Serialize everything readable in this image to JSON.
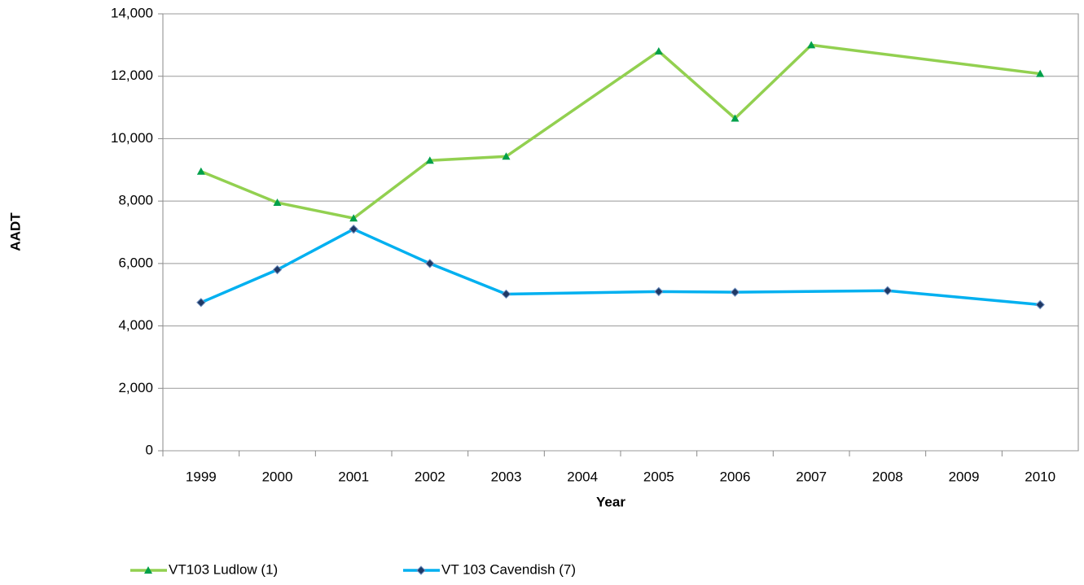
{
  "chart_data": {
    "type": "line",
    "x_label": "Year",
    "y_label": "AADT",
    "xlim": [
      1998.5,
      2010.5
    ],
    "xticks": [
      1999,
      2000,
      2001,
      2002,
      2003,
      2004,
      2005,
      2006,
      2007,
      2008,
      2009,
      2010
    ],
    "ylim": [
      0,
      14000
    ],
    "yticks": [
      0,
      {
        "value": 2000,
        "label": "2,000"
      },
      {
        "value": 4000,
        "label": "4,000"
      },
      {
        "value": 6000,
        "label": "6,000"
      },
      {
        "value": 8000,
        "label": "8,000"
      },
      {
        "value": 10000,
        "label": "10,000"
      },
      {
        "value": 12000,
        "label": "12,000"
      },
      {
        "value": 14000,
        "label": "14,000"
      }
    ],
    "grid": true,
    "legend": "bottom",
    "series": [
      {
        "name": "VT103 Ludlow (1)",
        "color": "#92d050",
        "marker": "triangle",
        "marker_color": "#00a04a",
        "x": [
          1999,
          2000,
          2001,
          2002,
          2003,
          2005,
          2006,
          2007,
          2010
        ],
        "values": [
          8950,
          7950,
          7450,
          9300,
          9430,
          12800,
          10650,
          13000,
          12080
        ]
      },
      {
        "name": "VT 103 Cavendish (7)",
        "color": "#00b0f0",
        "marker": "diamond",
        "marker_color": "#1f3864",
        "x": [
          1999,
          2000,
          2001,
          2002,
          2003,
          2005,
          2006,
          2008,
          2010
        ],
        "values": [
          4750,
          5800,
          7100,
          6000,
          5020,
          5100,
          5080,
          5130,
          4680
        ]
      }
    ]
  }
}
